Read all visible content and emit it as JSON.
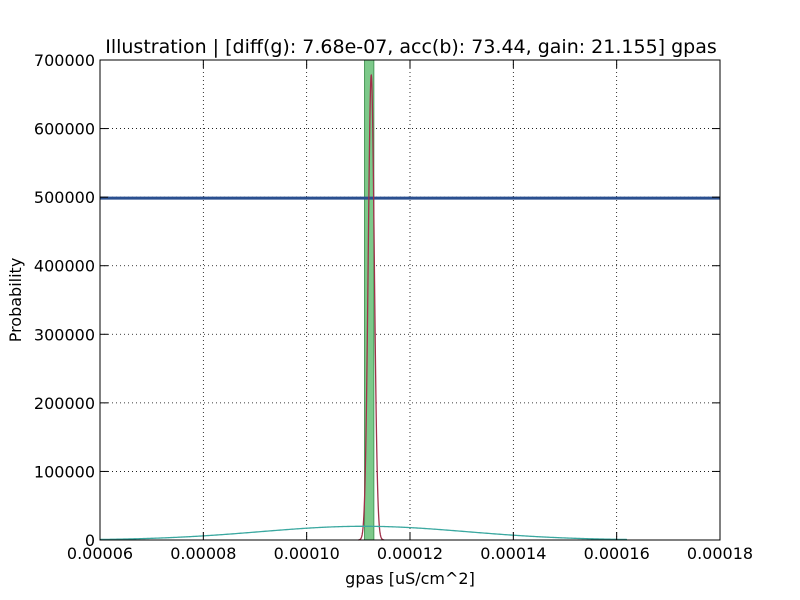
{
  "chart_data": {
    "type": "line",
    "title": "Illustration |  [diff(g): 7.68e-07, acc(b): 73.44, gain: 21.155] gpas",
    "xlabel": "gpas [uS/cm^2]",
    "ylabel": "Probability",
    "xlim": [
      6e-05,
      0.00018
    ],
    "ylim": [
      0,
      700000
    ],
    "grid": true,
    "x_ticks": [
      6e-05,
      8e-05,
      0.0001,
      0.00012,
      0.00014,
      0.00016,
      0.00018
    ],
    "x_tick_labels": [
      "0.00006",
      "0.00008",
      "0.00010",
      "0.00012",
      "0.00014",
      "0.00016",
      "0.00018"
    ],
    "y_ticks": [
      0,
      100000,
      200000,
      300000,
      400000,
      500000,
      600000,
      700000
    ],
    "y_tick_labels": [
      "0",
      "100000",
      "200000",
      "300000",
      "400000",
      "500000",
      "600000",
      "700000"
    ],
    "shaded_band": {
      "x_start": 0.0001112,
      "x_end": 0.000113,
      "color": "#7dc98a"
    },
    "series": [
      {
        "kind": "uniform",
        "x_start": 6e-05,
        "x_end": 0.00018,
        "y": 498500,
        "color": "#2a4f8f"
      },
      {
        "kind": "gaussian",
        "mean": 0.0001125,
        "peak": 678000,
        "sigma": 5.9e-07,
        "x_start": 0.00011,
        "x_end": 0.000115,
        "color": "#a0304a"
      },
      {
        "kind": "gaussian",
        "mean": 0.000111,
        "peak": 20000,
        "sigma": 2e-05,
        "x_start": 6e-05,
        "x_end": 0.000162,
        "color": "#3aa8a0"
      }
    ]
  }
}
